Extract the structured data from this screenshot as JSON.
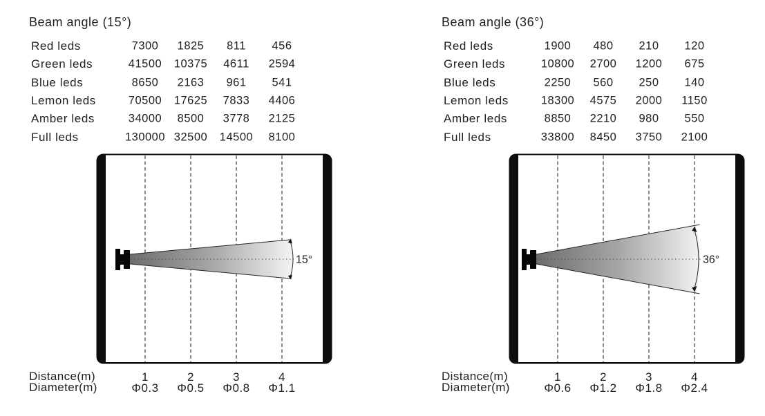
{
  "colors": {
    "background": "#ffffff",
    "text": "#1f1f1f",
    "frame": "#0d0d0d",
    "beam_dark": "#6d6d6d",
    "beam_light": "#f3f3f3"
  },
  "panels": [
    {
      "title": "Beam angle (15°)",
      "angle_label": "15°",
      "table": {
        "rows": [
          {
            "label": "Red leds",
            "values": [
              "7300",
              "1825",
              "811",
              "456"
            ]
          },
          {
            "label": "Green leds",
            "values": [
              "41500",
              "10375",
              "4611",
              "2594"
            ]
          },
          {
            "label": "Blue leds",
            "values": [
              "8650",
              "2163",
              "961",
              "541"
            ]
          },
          {
            "label": "Lemon leds",
            "values": [
              "70500",
              "17625",
              "7833",
              "4406"
            ]
          },
          {
            "label": "Amber leds",
            "values": [
              "34000",
              "8500",
              "3778",
              "2125"
            ]
          },
          {
            "label": "Full leds",
            "values": [
              "130000",
              "32500",
              "14500",
              "8100"
            ]
          }
        ]
      },
      "footer": {
        "distance_label": "Distance(m)",
        "diameter_label": "Diameter(m)",
        "distances": [
          "1",
          "2",
          "3",
          "4"
        ],
        "diameters": [
          "Φ0.3",
          "Φ0.5",
          "Φ0.8",
          "Φ1.1"
        ]
      }
    },
    {
      "title": "Beam angle (36°)",
      "angle_label": "36°",
      "table": {
        "rows": [
          {
            "label": "Red leds",
            "values": [
              "1900",
              "480",
              "210",
              "120"
            ]
          },
          {
            "label": "Green leds",
            "values": [
              "10800",
              "2700",
              "1200",
              "675"
            ]
          },
          {
            "label": "Blue leds",
            "values": [
              "2250",
              "560",
              "250",
              "140"
            ]
          },
          {
            "label": "Lemon leds",
            "values": [
              "18300",
              "4575",
              "2000",
              "1150"
            ]
          },
          {
            "label": "Amber leds",
            "values": [
              "8850",
              "2210",
              "980",
              "550"
            ]
          },
          {
            "label": "Full leds",
            "values": [
              "33800",
              "8450",
              "3750",
              "2100"
            ]
          }
        ]
      },
      "footer": {
        "distance_label": "Distance(m)",
        "diameter_label": "Diameter(m)",
        "distances": [
          "1",
          "2",
          "3",
          "4"
        ],
        "diameters": [
          "Φ0.6",
          "Φ1.2",
          "Φ1.8",
          "Φ2.4"
        ]
      }
    }
  ],
  "chart_data": [
    {
      "type": "table",
      "title": "Beam angle (15°)",
      "beam_angle_deg": 15,
      "distance_m": [
        1,
        2,
        3,
        4
      ],
      "beam_diameter_m": [
        0.3,
        0.5,
        0.8,
        1.1
      ],
      "series": [
        {
          "name": "Red leds",
          "values": [
            7300,
            1825,
            811,
            456
          ]
        },
        {
          "name": "Green leds",
          "values": [
            41500,
            10375,
            4611,
            2594
          ]
        },
        {
          "name": "Blue leds",
          "values": [
            8650,
            2163,
            961,
            541
          ]
        },
        {
          "name": "Lemon leds",
          "values": [
            70500,
            17625,
            7833,
            4406
          ]
        },
        {
          "name": "Amber leds",
          "values": [
            34000,
            8500,
            3778,
            2125
          ]
        },
        {
          "name": "Full leds",
          "values": [
            130000,
            32500,
            14500,
            8100
          ]
        }
      ]
    },
    {
      "type": "table",
      "title": "Beam angle (36°)",
      "beam_angle_deg": 36,
      "distance_m": [
        1,
        2,
        3,
        4
      ],
      "beam_diameter_m": [
        0.6,
        1.2,
        1.8,
        2.4
      ],
      "series": [
        {
          "name": "Red leds",
          "values": [
            1900,
            480,
            210,
            120
          ]
        },
        {
          "name": "Green leds",
          "values": [
            10800,
            2700,
            1200,
            675
          ]
        },
        {
          "name": "Blue leds",
          "values": [
            2250,
            560,
            250,
            140
          ]
        },
        {
          "name": "Lemon leds",
          "values": [
            18300,
            4575,
            2000,
            1150
          ]
        },
        {
          "name": "Amber leds",
          "values": [
            8850,
            2210,
            980,
            550
          ]
        },
        {
          "name": "Full leds",
          "values": [
            33800,
            8450,
            3750,
            2100
          ]
        }
      ]
    }
  ]
}
